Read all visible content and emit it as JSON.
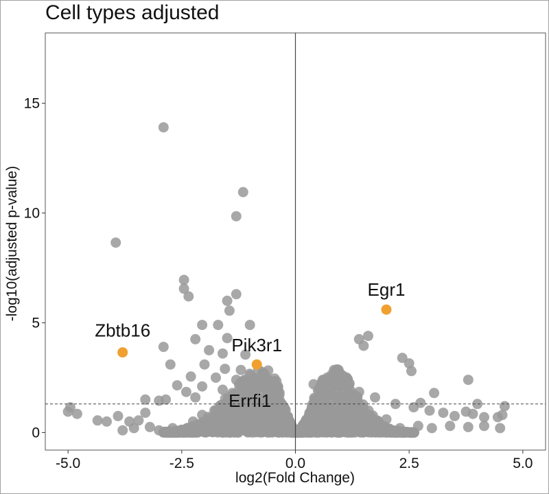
{
  "chart_data": {
    "type": "scatter",
    "title": "Cell types adjusted",
    "xlabel": "log2(Fold Change)",
    "ylabel": "-log10(adjusted p-value)",
    "xlim": [
      -5.5,
      5.5
    ],
    "ylim": [
      -0.8,
      18.2
    ],
    "xticks": [
      -5.0,
      -2.5,
      0.0,
      2.5,
      5.0
    ],
    "xtick_labels": [
      "-5.0",
      "-2.5",
      "0.0",
      "2.5",
      "5.0"
    ],
    "yticks": [
      0,
      5,
      10,
      15
    ],
    "ytick_labels": [
      "0",
      "5",
      "10",
      "15"
    ],
    "threshold_y": 1.3,
    "vline_x": 0,
    "grid": false,
    "colors": {
      "background": "#999999",
      "highlight": "#f0a030"
    },
    "highlighted": [
      {
        "gene": "Egr1",
        "x": 2.0,
        "y": 5.6
      },
      {
        "gene": "Zbtb16",
        "x": -3.8,
        "y": 3.65
      },
      {
        "gene": "Pik3r1",
        "x": -0.85,
        "y": 3.1
      },
      {
        "gene": "Errfi1",
        "x": -1.0,
        "y": 1.3
      }
    ],
    "background_points": [
      [
        -2.9,
        13.9
      ],
      [
        -1.15,
        10.95
      ],
      [
        -1.3,
        9.85
      ],
      [
        -3.95,
        8.65
      ],
      [
        -2.45,
        6.95
      ],
      [
        -2.45,
        6.55
      ],
      [
        -2.35,
        6.2
      ],
      [
        -1.5,
        6.0
      ],
      [
        -1.3,
        6.3
      ],
      [
        -1.45,
        5.55
      ],
      [
        -2.05,
        4.9
      ],
      [
        -1.7,
        4.9
      ],
      [
        -1.0,
        4.9
      ],
      [
        -1.5,
        4.3
      ],
      [
        -2.2,
        4.25
      ],
      [
        -2.9,
        3.9
      ],
      [
        -1.9,
        3.75
      ],
      [
        -1.6,
        3.6
      ],
      [
        -1.1,
        3.55
      ],
      [
        -2.75,
        3.1
      ],
      [
        -2.0,
        3.1
      ],
      [
        -1.55,
        2.9
      ],
      [
        -1.2,
        2.85
      ],
      [
        -2.3,
        2.55
      ],
      [
        -1.75,
        2.5
      ],
      [
        -1.3,
        2.4
      ],
      [
        -0.95,
        2.2
      ],
      [
        -0.6,
        2.15
      ],
      [
        -2.6,
        2.15
      ],
      [
        -2.05,
        2.1
      ],
      [
        -1.6,
        1.95
      ],
      [
        -2.85,
        1.5
      ],
      [
        -3.0,
        1.45
      ],
      [
        -2.4,
        1.85
      ],
      [
        -2.2,
        1.6
      ],
      [
        -3.3,
        1.5
      ],
      [
        -3.3,
        0.9
      ],
      [
        -3.45,
        0.55
      ],
      [
        -3.65,
        0.5
      ],
      [
        -3.9,
        0.75
      ],
      [
        -4.35,
        0.55
      ],
      [
        -4.8,
        0.85
      ],
      [
        -4.95,
        1.15
      ],
      [
        -5.0,
        0.95
      ],
      [
        -4.15,
        0.5
      ],
      [
        -3.8,
        0.1
      ],
      [
        -3.55,
        0.2
      ],
      [
        -3.2,
        0.25
      ],
      [
        -3.0,
        0.1
      ],
      [
        -2.7,
        0.2
      ],
      [
        -2.5,
        0.1
      ],
      [
        -2.25,
        0.5
      ],
      [
        -2.05,
        0.8
      ],
      [
        -1.75,
        1.0
      ],
      [
        -1.45,
        1.15
      ],
      [
        -1.25,
        0.9
      ],
      [
        -0.8,
        0.8
      ],
      [
        -0.6,
        0.6
      ],
      [
        -0.35,
        0.35
      ],
      [
        -0.15,
        0.15
      ],
      [
        -2.0,
        0.3
      ],
      [
        -1.7,
        0.4
      ],
      [
        -1.4,
        0.2
      ],
      [
        -1.1,
        0.3
      ],
      [
        -0.7,
        0.1
      ],
      [
        -0.4,
        0.05
      ],
      [
        1.6,
        4.4
      ],
      [
        1.4,
        4.25
      ],
      [
        1.5,
        3.95
      ],
      [
        2.35,
        3.4
      ],
      [
        2.5,
        3.15
      ],
      [
        2.55,
        2.8
      ],
      [
        3.05,
        1.8
      ],
      [
        3.8,
        2.4
      ],
      [
        0.4,
        2.2
      ],
      [
        0.6,
        2.4
      ],
      [
        0.85,
        2.85
      ],
      [
        0.7,
        2.5
      ],
      [
        1.0,
        2.1
      ],
      [
        1.4,
        1.85
      ],
      [
        1.75,
        1.6
      ],
      [
        2.2,
        1.3
      ],
      [
        2.6,
        1.15
      ],
      [
        2.75,
        1.35
      ],
      [
        2.95,
        1.0
      ],
      [
        3.25,
        0.9
      ],
      [
        3.5,
        0.75
      ],
      [
        3.75,
        0.95
      ],
      [
        3.9,
        0.85
      ],
      [
        4.0,
        1.3
      ],
      [
        4.15,
        0.7
      ],
      [
        4.45,
        0.7
      ],
      [
        4.55,
        0.8
      ],
      [
        4.6,
        1.2
      ],
      [
        4.5,
        0.2
      ],
      [
        4.15,
        0.3
      ],
      [
        3.8,
        0.25
      ],
      [
        3.4,
        0.3
      ],
      [
        3.0,
        0.2
      ],
      [
        2.7,
        0.3
      ],
      [
        2.3,
        0.2
      ],
      [
        1.9,
        0.3
      ],
      [
        1.5,
        0.2
      ],
      [
        1.1,
        0.25
      ],
      [
        0.7,
        0.15
      ],
      [
        0.35,
        0.1
      ],
      [
        0.15,
        0.1
      ],
      [
        1.2,
        0.7
      ],
      [
        1.6,
        0.8
      ],
      [
        2.0,
        0.6
      ]
    ]
  }
}
